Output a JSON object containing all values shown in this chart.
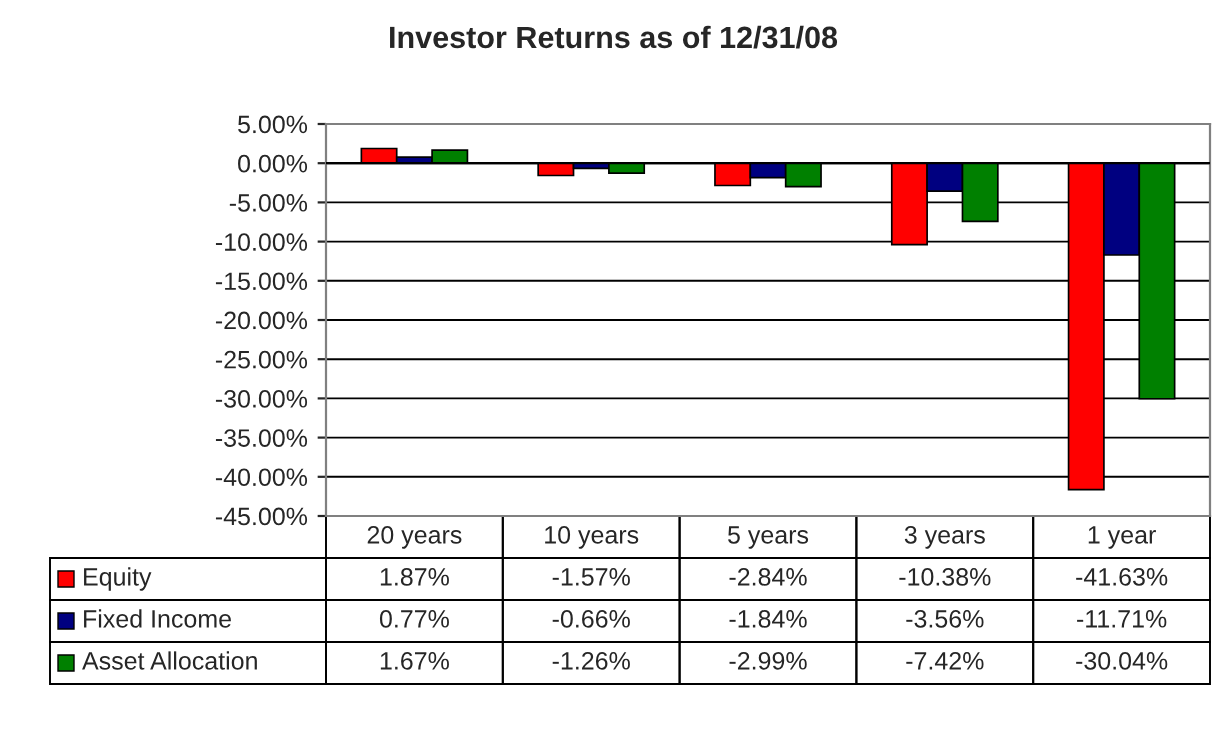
{
  "chart_data": {
    "type": "bar",
    "title": "Investor Returns as of 12/31/08",
    "categories": [
      "20 years",
      "10 years",
      "5 years",
      "3 years",
      "1 year"
    ],
    "series": [
      {
        "name": "Equity",
        "color": "#ff0000",
        "values": [
          1.87,
          -1.57,
          -2.84,
          -10.38,
          -41.63
        ],
        "value_labels": [
          "1.87%",
          "-1.57%",
          "-2.84%",
          "-10.38%",
          "-41.63%"
        ]
      },
      {
        "name": "Fixed Income",
        "color": "#000080",
        "values": [
          0.77,
          -0.66,
          -1.84,
          -3.56,
          -11.71
        ],
        "value_labels": [
          "0.77%",
          "-0.66%",
          "-1.84%",
          "-3.56%",
          "-11.71%"
        ]
      },
      {
        "name": "Asset Allocation",
        "color": "#008000",
        "values": [
          1.67,
          -1.26,
          -2.99,
          -7.42,
          -30.04
        ],
        "value_labels": [
          "1.67%",
          "-1.26%",
          "-2.99%",
          "-7.42%",
          "-30.04%"
        ]
      }
    ],
    "ylim": [
      -45,
      5
    ],
    "yticks": [
      {
        "value": 5,
        "label": "5.00%"
      },
      {
        "value": 0,
        "label": "0.00%"
      },
      {
        "value": -5,
        "label": "-5.00%"
      },
      {
        "value": -10,
        "label": "-10.00%"
      },
      {
        "value": -15,
        "label": "-15.00%"
      },
      {
        "value": -20,
        "label": "-20.00%"
      },
      {
        "value": -25,
        "label": "-25.00%"
      },
      {
        "value": -30,
        "label": "-30.00%"
      },
      {
        "value": -35,
        "label": "-35.00%"
      },
      {
        "value": -40,
        "label": "-40.00%"
      },
      {
        "value": -45,
        "label": "-45.00%"
      }
    ],
    "grid": "y",
    "legend": "bottom left"
  }
}
